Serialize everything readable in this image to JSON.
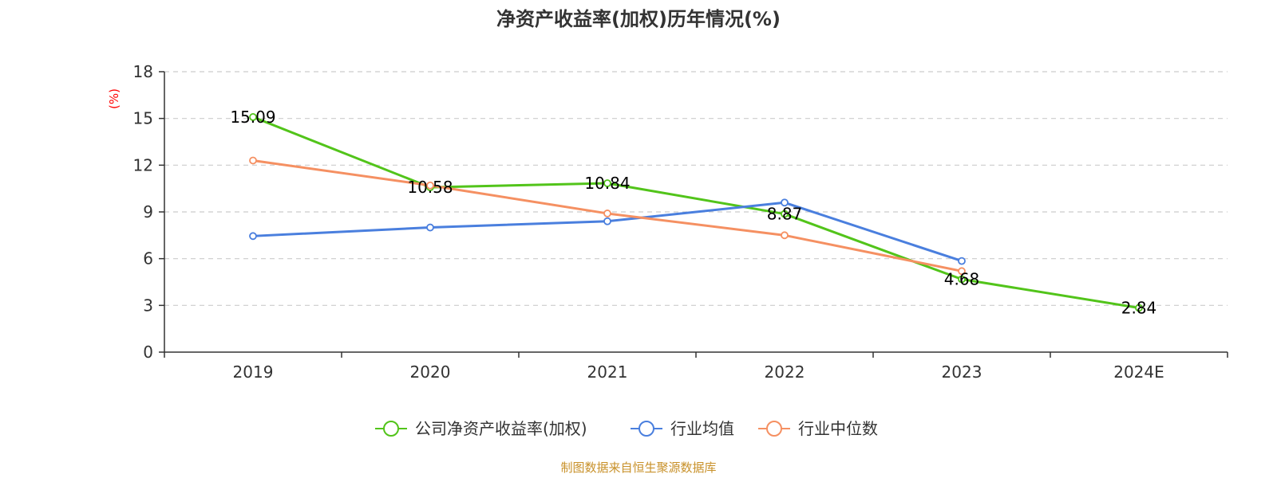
{
  "chart_data": {
    "type": "line",
    "title": "净资产收益率(加权)历年情况(%)",
    "ylabel": "(%)",
    "xlabel": "",
    "categories": [
      "2019",
      "2020",
      "2021",
      "2022",
      "2023",
      "2024E"
    ],
    "ylim": [
      0,
      18
    ],
    "yticks": [
      0,
      3,
      6,
      9,
      12,
      15,
      18
    ],
    "grid": true,
    "legend_position": "bottom",
    "series": [
      {
        "name": "公司净资产收益率(加权)",
        "color": "#52c41a",
        "values": [
          15.09,
          10.58,
          10.84,
          8.87,
          4.68,
          2.84
        ],
        "data_labels": [
          "15.09",
          "10.58",
          "10.84",
          "8.87",
          "4.68",
          "2.84"
        ]
      },
      {
        "name": "行业均值",
        "color": "#4a7fde",
        "values": [
          7.45,
          8.0,
          8.4,
          9.6,
          5.85,
          null
        ]
      },
      {
        "name": "行业中位数",
        "color": "#f59062",
        "values": [
          12.3,
          10.7,
          8.9,
          7.5,
          5.2,
          null
        ]
      }
    ]
  },
  "colors": {
    "axis": "#333333",
    "grid": "#cccccc",
    "ylabel": "#ff0000",
    "source": "#c8912a"
  },
  "footer": {
    "source": "制图数据来自恒生聚源数据库"
  }
}
